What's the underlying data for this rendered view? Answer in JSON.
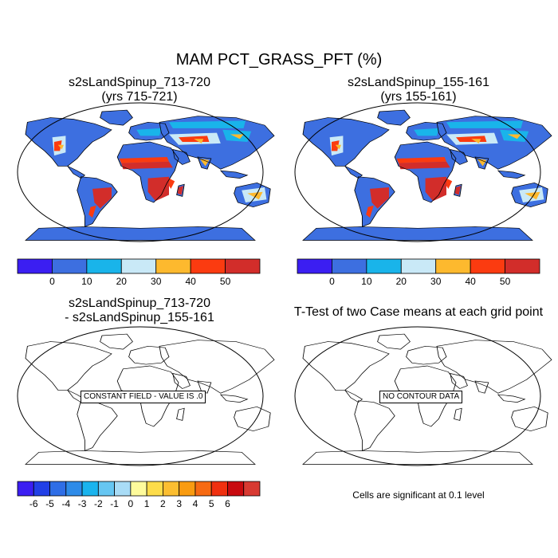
{
  "figure": {
    "title": "MAM PCT_GRASS_PFT (%)"
  },
  "panels": [
    {
      "title_line1": "s2sLandSpinup_713-720",
      "title_line2": "(yrs 715-721)"
    },
    {
      "title_line1": "s2sLandSpinup_155-161",
      "title_line2": "(yrs 155-161)"
    },
    {
      "title_line1": "s2sLandSpinup_713-720",
      "title_line2": "- s2sLandSpinup_155-161",
      "box_label": "CONSTANT FIELD - VALUE IS .0"
    },
    {
      "title_line1": "T-Test of two Case means at each grid point",
      "box_label": "NO CONTOUR DATA"
    }
  ],
  "colorbars": {
    "top": {
      "colors": [
        "#3b1ef2",
        "#3d6fe0",
        "#19b4ea",
        "#c9e9f7",
        "#fdb92e",
        "#fb3b10",
        "#d22d2a"
      ],
      "labels": [
        "0",
        "10",
        "20",
        "30",
        "40",
        "50"
      ]
    },
    "diff": {
      "colors": [
        "#3b1ef2",
        "#2240e6",
        "#2f6ee6",
        "#2e8be8",
        "#1ab4ee",
        "#66c6f2",
        "#a9dcf6",
        "#fefb9c",
        "#fddc4a",
        "#fcbe31",
        "#f99b10",
        "#f76a12",
        "#f0300f",
        "#c80a0f",
        "#d83a32"
      ],
      "labels": [
        "-6",
        "-5",
        "-4",
        "-3",
        "-2",
        "-1",
        "0",
        "1",
        "2",
        "3",
        "4",
        "5",
        "6"
      ]
    }
  },
  "footer_note": "Cells are significant at 0.1 level",
  "colors": {
    "land_base": "#3d6fe0",
    "grass_high": "#d22d2a",
    "grass_mid": "#fb3b10",
    "grass_warm": "#fdb92e",
    "grass_low": "#c9e9f7",
    "grass_light": "#19b4ea"
  }
}
